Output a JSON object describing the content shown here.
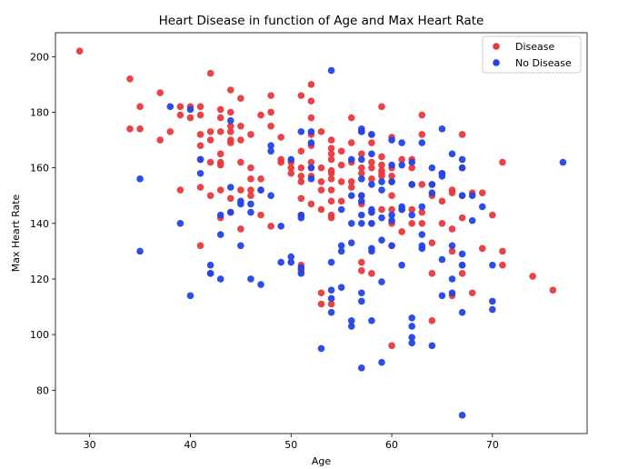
{
  "chart_data": {
    "type": "scatter",
    "title": "Heart Disease in function of Age and Max Heart Rate",
    "xlabel": "Age",
    "ylabel": "Max Heart Rate",
    "xlim": [
      26.6,
      79.4
    ],
    "ylim": [
      64.4,
      208.6
    ],
    "xticks": [
      30,
      40,
      50,
      60,
      70
    ],
    "yticks": [
      80,
      100,
      120,
      140,
      160,
      180,
      200
    ],
    "grid": false,
    "legend_position": "top-right",
    "series": [
      {
        "name": "Disease",
        "color": "#e8383d",
        "points": [
          [
            29,
            202
          ],
          [
            34,
            192
          ],
          [
            34,
            174
          ],
          [
            35,
            182
          ],
          [
            35,
            174
          ],
          [
            37,
            187
          ],
          [
            37,
            170
          ],
          [
            38,
            173
          ],
          [
            39,
            182
          ],
          [
            39,
            179
          ],
          [
            39,
            152
          ],
          [
            40,
            178
          ],
          [
            40,
            182
          ],
          [
            41,
            182
          ],
          [
            41,
            179
          ],
          [
            41,
            172
          ],
          [
            41,
            168
          ],
          [
            41,
            163
          ],
          [
            41,
            153
          ],
          [
            41,
            132
          ],
          [
            42,
            194
          ],
          [
            42,
            173
          ],
          [
            42,
            170
          ],
          [
            42,
            162
          ],
          [
            42,
            150
          ],
          [
            42,
            122
          ],
          [
            43,
            181
          ],
          [
            43,
            178
          ],
          [
            43,
            173
          ],
          [
            43,
            165
          ],
          [
            43,
            162
          ],
          [
            43,
            161
          ],
          [
            43,
            152
          ],
          [
            43,
            142
          ],
          [
            44,
            188
          ],
          [
            44,
            180
          ],
          [
            44,
            175
          ],
          [
            44,
            173
          ],
          [
            44,
            170
          ],
          [
            44,
            169
          ],
          [
            44,
            149
          ],
          [
            44,
            144
          ],
          [
            45,
            185
          ],
          [
            45,
            175
          ],
          [
            45,
            170
          ],
          [
            45,
            162
          ],
          [
            45,
            152
          ],
          [
            45,
            138
          ],
          [
            46,
            172
          ],
          [
            46,
            160
          ],
          [
            46,
            156
          ],
          [
            46,
            152
          ],
          [
            46,
            150
          ],
          [
            47,
            179
          ],
          [
            47,
            156
          ],
          [
            47,
            152
          ],
          [
            47,
            143
          ],
          [
            48,
            186
          ],
          [
            48,
            180
          ],
          [
            48,
            175
          ],
          [
            48,
            139
          ],
          [
            49,
            171
          ],
          [
            49,
            163
          ],
          [
            49,
            162
          ],
          [
            50,
            162
          ],
          [
            50,
            160
          ],
          [
            50,
            158
          ],
          [
            51,
            186
          ],
          [
            51,
            166
          ],
          [
            51,
            160
          ],
          [
            51,
            157
          ],
          [
            51,
            155
          ],
          [
            51,
            149
          ],
          [
            51,
            143
          ],
          [
            51,
            125
          ],
          [
            51,
            123
          ],
          [
            52,
            190
          ],
          [
            52,
            184
          ],
          [
            52,
            178
          ],
          [
            52,
            172
          ],
          [
            52,
            168
          ],
          [
            52,
            162
          ],
          [
            52,
            160
          ],
          [
            52,
            157
          ],
          [
            52,
            147
          ],
          [
            53,
            173
          ],
          [
            53,
            160
          ],
          [
            53,
            155
          ],
          [
            53,
            152
          ],
          [
            53,
            145
          ],
          [
            53,
            115
          ],
          [
            53,
            111
          ],
          [
            54,
            170
          ],
          [
            54,
            167
          ],
          [
            54,
            165
          ],
          [
            54,
            163
          ],
          [
            54,
            159
          ],
          [
            54,
            158
          ],
          [
            54,
            156
          ],
          [
            54,
            152
          ],
          [
            54,
            148
          ],
          [
            54,
            143
          ],
          [
            54,
            142
          ],
          [
            54,
            111
          ],
          [
            55,
            166
          ],
          [
            55,
            161
          ],
          [
            55,
            155
          ],
          [
            55,
            148
          ],
          [
            56,
            178
          ],
          [
            56,
            169
          ],
          [
            56,
            162
          ],
          [
            56,
            155
          ],
          [
            56,
            153
          ],
          [
            57,
            173
          ],
          [
            57,
            165
          ],
          [
            57,
            160
          ],
          [
            57,
            158
          ],
          [
            57,
            150
          ],
          [
            57,
            147
          ],
          [
            57,
            126
          ],
          [
            57,
            123
          ],
          [
            58,
            172
          ],
          [
            58,
            169
          ],
          [
            58,
            162
          ],
          [
            58,
            160
          ],
          [
            58,
            156
          ],
          [
            58,
            144
          ],
          [
            58,
            140
          ],
          [
            58,
            122
          ],
          [
            59,
            182
          ],
          [
            59,
            164
          ],
          [
            59,
            161
          ],
          [
            59,
            159
          ],
          [
            59,
            158
          ],
          [
            59,
            157
          ],
          [
            59,
            145
          ],
          [
            60,
            171
          ],
          [
            60,
            160
          ],
          [
            60,
            157
          ],
          [
            60,
            155
          ],
          [
            60,
            150
          ],
          [
            60,
            145
          ],
          [
            60,
            140
          ],
          [
            60,
            132
          ],
          [
            60,
            96
          ],
          [
            61,
            163
          ],
          [
            61,
            145
          ],
          [
            61,
            137
          ],
          [
            62,
            163
          ],
          [
            62,
            160
          ],
          [
            62,
            154
          ],
          [
            62,
            145
          ],
          [
            62,
            140
          ],
          [
            63,
            179
          ],
          [
            63,
            172
          ],
          [
            63,
            154
          ],
          [
            63,
            144
          ],
          [
            63,
            140
          ],
          [
            64,
            154
          ],
          [
            64,
            150
          ],
          [
            64,
            133
          ],
          [
            64,
            122
          ],
          [
            64,
            105
          ],
          [
            65,
            158
          ],
          [
            65,
            148
          ],
          [
            65,
            140
          ],
          [
            66,
            152
          ],
          [
            66,
            151
          ],
          [
            66,
            138
          ],
          [
            66,
            130
          ],
          [
            66,
            114
          ],
          [
            67,
            172
          ],
          [
            67,
            160
          ],
          [
            67,
            150
          ],
          [
            67,
            142
          ],
          [
            67,
            125
          ],
          [
            67,
            122
          ],
          [
            68,
            115
          ],
          [
            68,
            151
          ],
          [
            69,
            151
          ],
          [
            69,
            131
          ],
          [
            70,
            143
          ],
          [
            71,
            162
          ],
          [
            71,
            130
          ],
          [
            71,
            125
          ],
          [
            74,
            121
          ],
          [
            76,
            116
          ]
        ]
      },
      {
        "name": "No Disease",
        "color": "#2243e8",
        "points": [
          [
            35,
            156
          ],
          [
            35,
            130
          ],
          [
            38,
            182
          ],
          [
            39,
            140
          ],
          [
            40,
            181
          ],
          [
            40,
            114
          ],
          [
            41,
            158
          ],
          [
            41,
            163
          ],
          [
            42,
            125
          ],
          [
            42,
            122
          ],
          [
            43,
            143
          ],
          [
            43,
            136
          ],
          [
            43,
            120
          ],
          [
            44,
            177
          ],
          [
            44,
            153
          ],
          [
            44,
            144
          ],
          [
            45,
            148
          ],
          [
            45,
            147
          ],
          [
            45,
            132
          ],
          [
            46,
            147
          ],
          [
            46,
            144
          ],
          [
            46,
            120
          ],
          [
            47,
            152
          ],
          [
            47,
            118
          ],
          [
            48,
            168
          ],
          [
            48,
            166
          ],
          [
            48,
            150
          ],
          [
            49,
            139
          ],
          [
            49,
            126
          ],
          [
            50,
            163
          ],
          [
            50,
            128
          ],
          [
            50,
            126
          ],
          [
            51,
            173
          ],
          [
            51,
            143
          ],
          [
            51,
            142
          ],
          [
            51,
            124
          ],
          [
            51,
            122
          ],
          [
            52,
            173
          ],
          [
            52,
            169
          ],
          [
            52,
            160
          ],
          [
            52,
            156
          ],
          [
            53,
            95
          ],
          [
            54,
            195
          ],
          [
            54,
            116
          ],
          [
            54,
            113
          ],
          [
            54,
            108
          ],
          [
            54,
            126
          ],
          [
            55,
            117
          ],
          [
            55,
            132
          ],
          [
            55,
            130
          ],
          [
            55,
            145
          ],
          [
            56,
            140
          ],
          [
            56,
            133
          ],
          [
            56,
            105
          ],
          [
            56,
            103
          ],
          [
            56,
            163
          ],
          [
            56,
            150
          ],
          [
            57,
            174
          ],
          [
            57,
            173
          ],
          [
            57,
            163
          ],
          [
            57,
            156
          ],
          [
            57,
            150
          ],
          [
            57,
            148
          ],
          [
            57,
            143
          ],
          [
            57,
            140
          ],
          [
            57,
            115
          ],
          [
            57,
            112
          ],
          [
            57,
            88
          ],
          [
            58,
            172
          ],
          [
            58,
            165
          ],
          [
            58,
            154
          ],
          [
            58,
            145
          ],
          [
            58,
            144
          ],
          [
            58,
            140
          ],
          [
            58,
            131
          ],
          [
            58,
            130
          ],
          [
            58,
            105
          ],
          [
            59,
            155
          ],
          [
            59,
            152
          ],
          [
            59,
            142
          ],
          [
            59,
            134
          ],
          [
            59,
            119
          ],
          [
            59,
            90
          ],
          [
            60,
            170
          ],
          [
            60,
            161
          ],
          [
            60,
            155
          ],
          [
            60,
            143
          ],
          [
            60,
            141
          ],
          [
            60,
            132
          ],
          [
            61,
            169
          ],
          [
            61,
            161
          ],
          [
            61,
            146
          ],
          [
            61,
            145
          ],
          [
            61,
            125
          ],
          [
            62,
            162
          ],
          [
            62,
            154
          ],
          [
            62,
            143
          ],
          [
            62,
            106
          ],
          [
            62,
            103
          ],
          [
            62,
            99
          ],
          [
            62,
            97
          ],
          [
            63,
            169
          ],
          [
            63,
            146
          ],
          [
            63,
            136
          ],
          [
            63,
            132
          ],
          [
            63,
            131
          ],
          [
            64,
            160
          ],
          [
            64,
            154
          ],
          [
            64,
            151
          ],
          [
            64,
            96
          ],
          [
            65,
            174
          ],
          [
            65,
            158
          ],
          [
            65,
            157
          ],
          [
            65,
            127
          ],
          [
            65,
            114
          ],
          [
            66,
            165
          ],
          [
            66,
            132
          ],
          [
            66,
            120
          ],
          [
            66,
            115
          ],
          [
            67,
            163
          ],
          [
            67,
            160
          ],
          [
            67,
            150
          ],
          [
            67,
            129
          ],
          [
            67,
            125
          ],
          [
            67,
            108
          ],
          [
            67,
            71
          ],
          [
            68,
            150
          ],
          [
            68,
            141
          ],
          [
            69,
            146
          ],
          [
            70,
            125
          ],
          [
            70,
            112
          ],
          [
            70,
            109
          ],
          [
            77,
            162
          ]
        ]
      }
    ]
  }
}
